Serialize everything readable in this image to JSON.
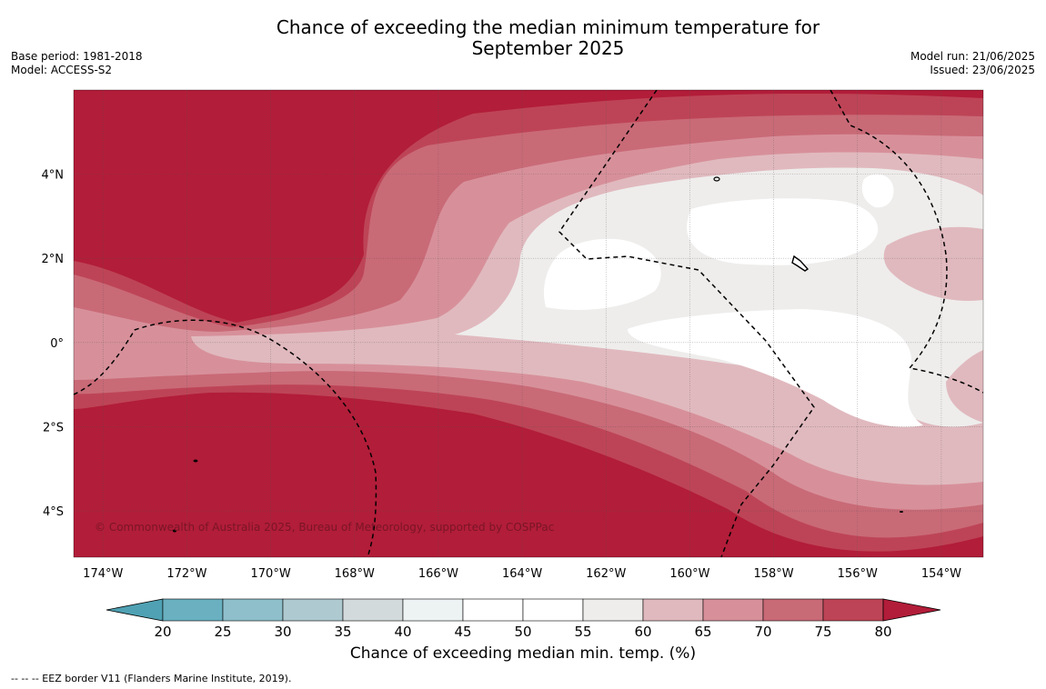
{
  "title_line1": "Chance of exceeding the median minimum temperature for",
  "title_line2": "September 2025",
  "meta_left": [
    "Base period: 1981-2018",
    "Model: ACCESS-S2"
  ],
  "meta_right": [
    "Model run: 21/06/2025",
    "Issued: 23/06/2025"
  ],
  "map": {
    "lat_range": [
      -5.1,
      6.0
    ],
    "lon_range": [
      -174.7,
      -153.0
    ],
    "lat_ticks": [
      {
        "value": 4,
        "label": "4°N"
      },
      {
        "value": 2,
        "label": "2°N"
      },
      {
        "value": 0,
        "label": "0°"
      },
      {
        "value": -2,
        "label": "2°S"
      },
      {
        "value": -4,
        "label": "4°S"
      }
    ],
    "lon_ticks": [
      {
        "value": -174,
        "label": "174°W"
      },
      {
        "value": -172,
        "label": "172°W"
      },
      {
        "value": -170,
        "label": "170°W"
      },
      {
        "value": -168,
        "label": "168°W"
      },
      {
        "value": -166,
        "label": "166°W"
      },
      {
        "value": -164,
        "label": "164°W"
      },
      {
        "value": -162,
        "label": "162°W"
      },
      {
        "value": -160,
        "label": "160°W"
      },
      {
        "value": -158,
        "label": "158°W"
      },
      {
        "value": -156,
        "label": "156°W"
      },
      {
        "value": -154,
        "label": "154°W"
      }
    ],
    "copyright": "© Commonwealth of Australia 2025, Bureau of Meteorology, supported by COSPPac",
    "eez_color": "#000000"
  },
  "colorbar": {
    "title": "Chance of exceeding median min. temp. (%)",
    "ticks": [
      "20",
      "25",
      "30",
      "35",
      "40",
      "45",
      "50",
      "55",
      "60",
      "65",
      "70",
      "75",
      "80"
    ],
    "under_color": "#4fa1b3",
    "over_color": "#b21d39",
    "colors": [
      "#6ab0c0",
      "#8ebfcb",
      "#aec9cf",
      "#d3dadb",
      "#edf2f3",
      "#ffffff",
      "#ffffff",
      "#eeedec",
      "#e0b9be",
      "#d7909a",
      "#c96a77",
      "#bd4456"
    ]
  },
  "footnote": "--  --  -- EEZ border V11 (Flanders Marine Institute, 2019)."
}
